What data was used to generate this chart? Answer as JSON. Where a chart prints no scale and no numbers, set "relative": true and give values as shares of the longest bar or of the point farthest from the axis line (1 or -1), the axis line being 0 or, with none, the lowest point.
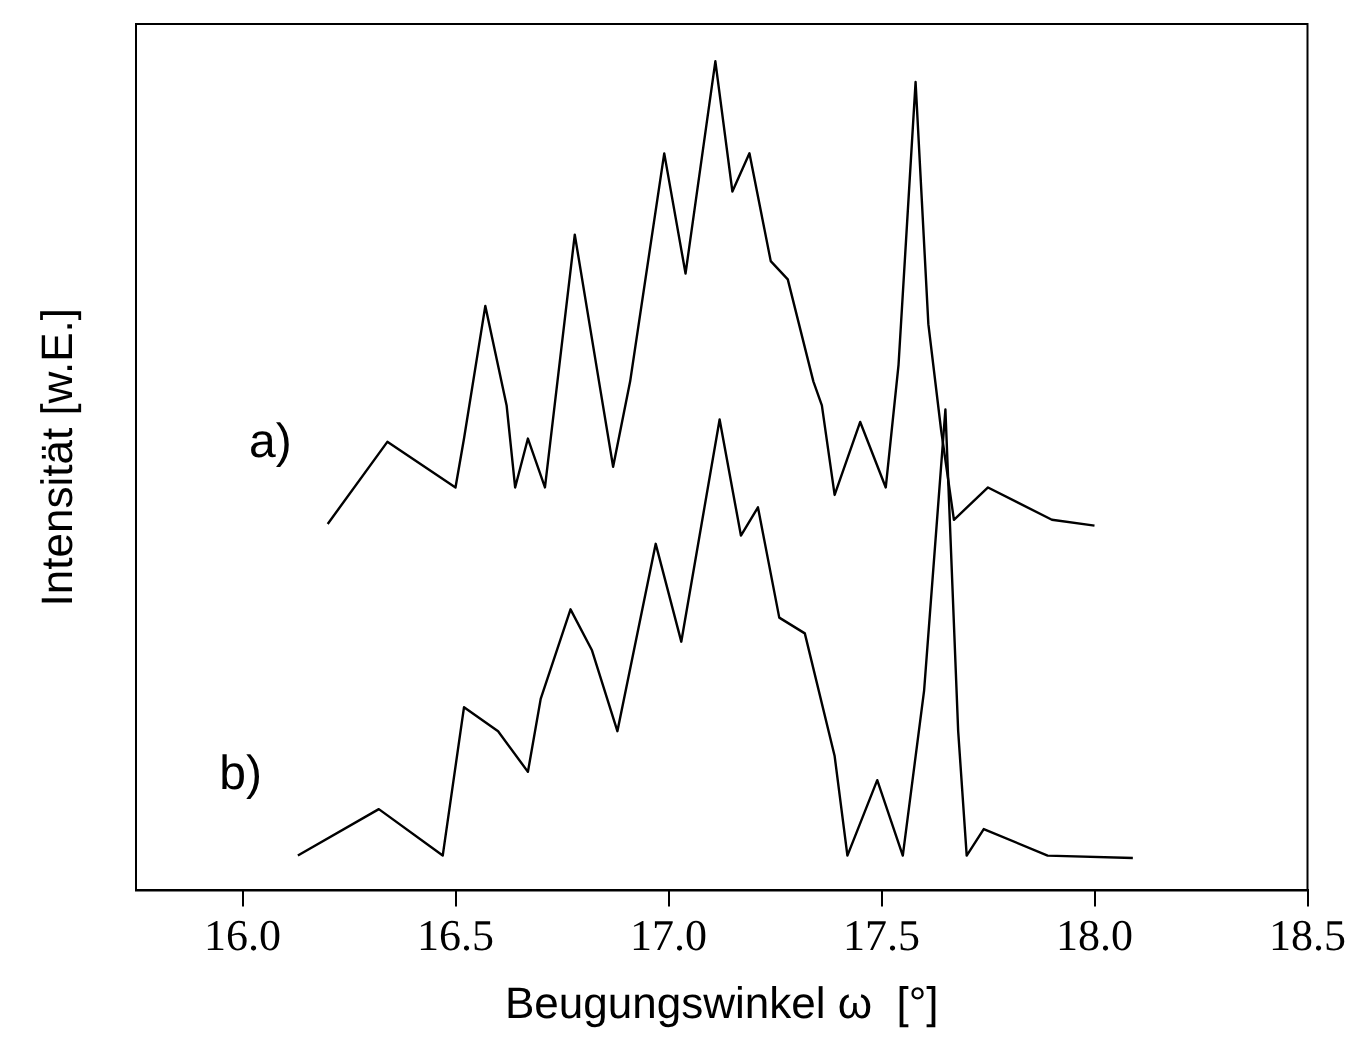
{
  "chart_data": {
    "type": "line",
    "xlabel": "Beugungswinkel ω  [°]",
    "ylabel": "Intensität [w.E.]",
    "relative": true,
    "xlim": [
      15.75,
      18.5
    ],
    "xticks": [
      {
        "value": 16,
        "label": "16.0"
      },
      {
        "value": 16.5,
        "label": "16.5"
      },
      {
        "value": 17,
        "label": "17.0"
      },
      {
        "value": 17.5,
        "label": "17.5"
      },
      {
        "value": 18,
        "label": "18.0"
      },
      {
        "value": 18.5,
        "label": "18.5"
      }
    ],
    "grid": false,
    "legend": false,
    "marker": "none",
    "line_style": "solid",
    "series": [
      {
        "name": "a)",
        "color": "#000000",
        "x": [
          16.2,
          16.34,
          16.5,
          16.52,
          16.57,
          16.62,
          16.64,
          16.67,
          16.71,
          16.78,
          16.84,
          16.87,
          16.91,
          16.99,
          17.04,
          17.11,
          17.15,
          17.19,
          17.24,
          17.28,
          17.34,
          17.36,
          17.39,
          17.45,
          17.51,
          17.54,
          17.58,
          17.61,
          17.64,
          17.67,
          17.75,
          17.9,
          18.0
        ],
        "values": [
          0.442,
          0.541,
          0.486,
          0.545,
          0.705,
          0.585,
          0.486,
          0.545,
          0.486,
          0.791,
          0.604,
          0.511,
          0.614,
          0.889,
          0.744,
          1.0,
          0.843,
          0.889,
          0.759,
          0.737,
          0.614,
          0.585,
          0.477,
          0.565,
          0.486,
          0.634,
          0.975,
          0.683,
          0.555,
          0.447,
          0.486,
          0.447,
          0.44
        ]
      },
      {
        "name": "b)",
        "color": "#000000",
        "x": [
          16.13,
          16.32,
          16.47,
          16.52,
          16.6,
          16.67,
          16.7,
          16.77,
          16.82,
          16.88,
          16.97,
          17.03,
          17.12,
          17.17,
          17.21,
          17.26,
          17.32,
          17.39,
          17.42,
          17.49,
          17.55,
          17.6,
          17.65,
          17.68,
          17.7,
          17.74,
          17.89,
          18.09
        ],
        "values": [
          0.042,
          0.098,
          0.042,
          0.221,
          0.192,
          0.143,
          0.231,
          0.339,
          0.29,
          0.192,
          0.418,
          0.3,
          0.568,
          0.428,
          0.462,
          0.329,
          0.31,
          0.162,
          0.042,
          0.133,
          0.042,
          0.241,
          0.58,
          0.192,
          0.042,
          0.074,
          0.042,
          0.039
        ]
      }
    ]
  }
}
